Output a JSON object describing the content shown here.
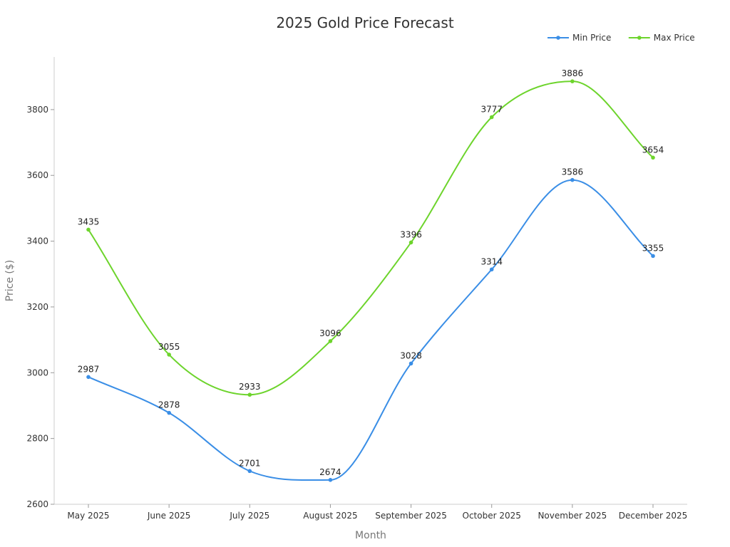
{
  "chart_data": {
    "type": "line",
    "title": "2025 Gold Price Forecast",
    "xlabel": "Month",
    "ylabel": "Price ($)",
    "categories": [
      "May 2025",
      "June 2025",
      "July 2025",
      "August 2025",
      "September 2025",
      "October 2025",
      "November 2025",
      "December 2025"
    ],
    "ylim": [
      2600,
      3960
    ],
    "yticks": [
      2600,
      2800,
      3000,
      3200,
      3400,
      3600,
      3800
    ],
    "grid": false,
    "legend": "top-right",
    "series": [
      {
        "name": "Min Price",
        "color": "#3a8ee6",
        "values": [
          2987,
          2878,
          2701,
          2674,
          3028,
          3314,
          3586,
          3355
        ]
      },
      {
        "name": "Max Price",
        "color": "#6dd42c",
        "values": [
          3435,
          3055,
          2933,
          3096,
          3396,
          3777,
          3886,
          3654
        ]
      }
    ]
  }
}
